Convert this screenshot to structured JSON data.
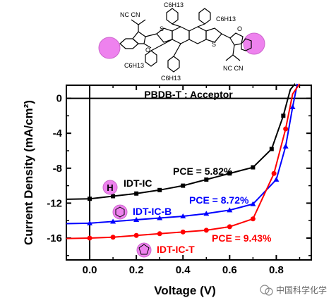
{
  "molecule": {
    "substituent_top": "C6H13",
    "cyano_label": "NC CN",
    "carbonyl": "O",
    "sulfur": "S",
    "sphere_color": "#ee82ee"
  },
  "watermark": {
    "text": "中国科学化学"
  },
  "chart_data": {
    "type": "line",
    "title": "PBDB-T : Acceptor",
    "xlabel": "Voltage (V)",
    "ylabel": "Current Density (mA/cm²)",
    "xlim": [
      -0.1,
      0.95
    ],
    "ylim": [
      -18.5,
      1.5
    ],
    "xticks": [
      0.0,
      0.2,
      0.4,
      0.6,
      0.8
    ],
    "xtick_labels": [
      "0.0",
      "0.2",
      "0.4",
      "0.6",
      "0.8"
    ],
    "yticks": [
      0,
      -4,
      -8,
      -12,
      -16
    ],
    "ytick_labels": [
      "0",
      "-4",
      "-8",
      "-12",
      "-16"
    ],
    "grid": false,
    "series": [
      {
        "name": "IDT-IC",
        "label": "IDT-IC",
        "pce": "PCE = 5.82%",
        "badge": "H",
        "color": "#000000",
        "marker": "square",
        "x": [
          0.0,
          0.1,
          0.2,
          0.3,
          0.4,
          0.5,
          0.6,
          0.7,
          0.78,
          0.83,
          0.86,
          0.88
        ],
        "y": [
          -11.5,
          -11.2,
          -10.9,
          -10.5,
          -10.0,
          -9.3,
          -8.6,
          -7.9,
          -5.8,
          -2.0,
          1.0,
          3.0
        ]
      },
      {
        "name": "IDT-IC-B",
        "label": "IDT-IC-B",
        "pce": "PCE = 8.72%",
        "badge": "benzene",
        "color": "#0000ff",
        "marker": "triangle",
        "x": [
          0.0,
          0.1,
          0.2,
          0.3,
          0.4,
          0.5,
          0.6,
          0.7,
          0.8,
          0.84,
          0.87,
          0.89
        ],
        "y": [
          -14.3,
          -14.1,
          -13.9,
          -13.7,
          -13.5,
          -13.2,
          -12.8,
          -12.1,
          -9.3,
          -5.5,
          -1.0,
          3.0
        ]
      },
      {
        "name": "IDT-IC-T",
        "label": "IDT-IC-T",
        "pce": "PCE = 9.43%",
        "badge": "thiophene",
        "color": "#ff0000",
        "marker": "circle",
        "x": [
          0.0,
          0.1,
          0.2,
          0.3,
          0.4,
          0.5,
          0.6,
          0.7,
          0.79,
          0.84,
          0.87,
          0.9
        ],
        "y": [
          -16.0,
          -15.9,
          -15.7,
          -15.5,
          -15.3,
          -15.1,
          -14.7,
          -13.8,
          -8.6,
          -3.5,
          0.5,
          3.0
        ]
      }
    ]
  }
}
